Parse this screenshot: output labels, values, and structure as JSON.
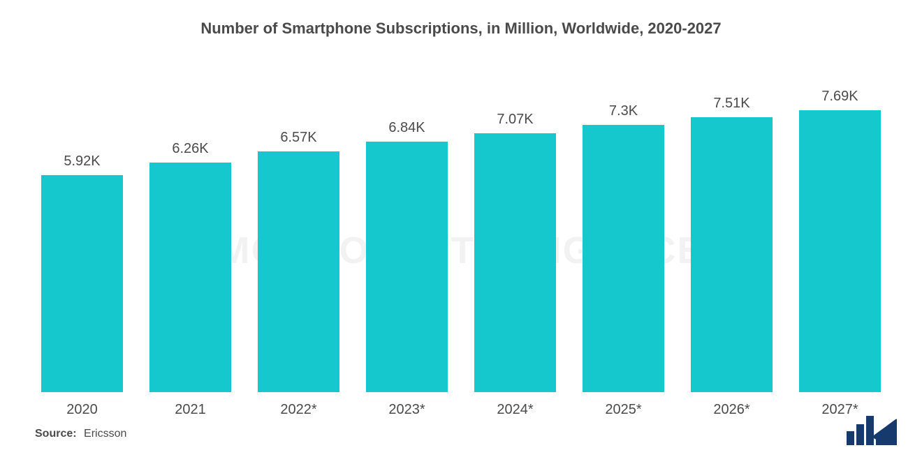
{
  "chart": {
    "type": "bar",
    "title": "Number of Smartphone Subscriptions, in Million, Worldwide, 2020-2027",
    "title_fontsize": 22,
    "title_color": "#4a4a4a",
    "background_color": "#ffffff",
    "bar_color": "#14c8cd",
    "label_color": "#4a4a4a",
    "value_fontsize": 20,
    "xlabel_fontsize": 20,
    "source_fontsize": 16,
    "bar_width_ratio": 0.76,
    "ymax": 8.0,
    "categories": [
      "2020",
      "2021",
      "2022*",
      "2023*",
      "2024*",
      "2025*",
      "2026*",
      "2027*"
    ],
    "values": [
      5.92,
      6.26,
      6.57,
      6.84,
      7.07,
      7.3,
      7.51,
      7.69
    ],
    "value_labels": [
      "5.92K",
      "6.26K",
      "6.57K",
      "6.84K",
      "7.07K",
      "7.3K",
      "7.51K",
      "7.69K"
    ]
  },
  "source": {
    "label": "Source:",
    "name": "Ericsson"
  },
  "watermark": "MORDOR INTELLIGENCE",
  "logo": {
    "fill": "#153a6b",
    "width": 72,
    "height": 42
  }
}
